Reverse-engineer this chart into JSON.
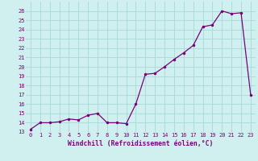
{
  "x": [
    0,
    1,
    2,
    3,
    4,
    5,
    6,
    7,
    8,
    9,
    10,
    11,
    12,
    13,
    14,
    15,
    16,
    17,
    18,
    19,
    20,
    21,
    22,
    23
  ],
  "y": [
    13.3,
    14.0,
    14.0,
    14.1,
    14.4,
    14.3,
    14.8,
    15.0,
    14.0,
    14.0,
    13.9,
    16.0,
    19.2,
    19.3,
    20.0,
    20.8,
    21.5,
    22.3,
    24.3,
    24.5,
    26.0,
    25.7,
    25.8,
    17.0
  ],
  "line_color": "#7b007b",
  "marker_color": "#7b007b",
  "bg_color": "#cff0ee",
  "grid_color": "#aaddda",
  "xlabel": "Windchill (Refroidissement éolien,°C)",
  "xlim": [
    -0.5,
    23.5
  ],
  "ylim": [
    13,
    27
  ],
  "yticks": [
    13,
    14,
    15,
    16,
    17,
    18,
    19,
    20,
    21,
    22,
    23,
    24,
    25,
    26
  ],
  "xticks": [
    0,
    1,
    2,
    3,
    4,
    5,
    6,
    7,
    8,
    9,
    10,
    11,
    12,
    13,
    14,
    15,
    16,
    17,
    18,
    19,
    20,
    21,
    22,
    23
  ]
}
